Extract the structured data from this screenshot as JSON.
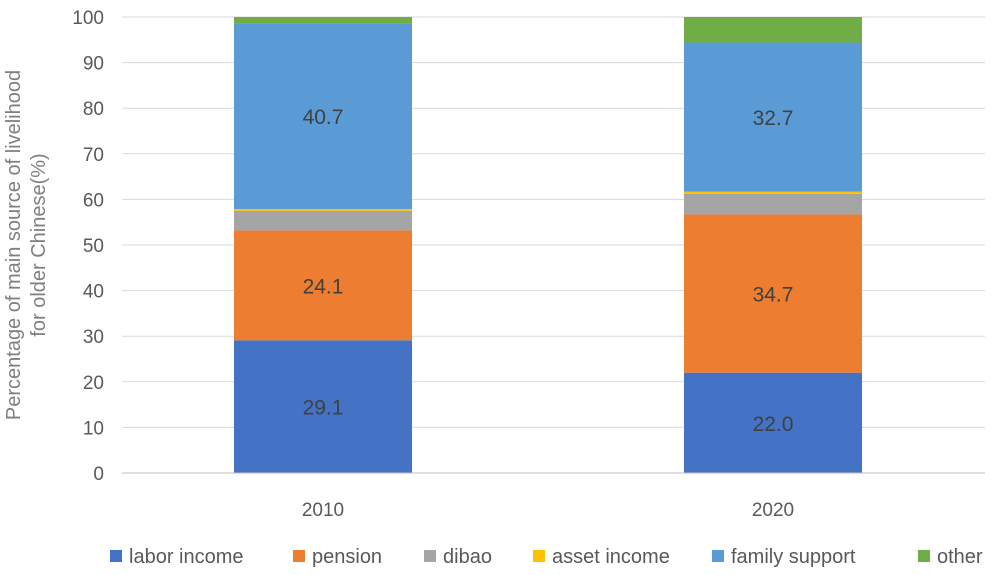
{
  "chart_data": {
    "type": "bar",
    "stacked": true,
    "categories": [
      "2010",
      "2020"
    ],
    "series": [
      {
        "name": "labor income",
        "color": "#4472c4",
        "values": [
          29.1,
          22.0
        ]
      },
      {
        "name": "pension",
        "color": "#ed7d31",
        "values": [
          24.1,
          34.7
        ]
      },
      {
        "name": "dibao",
        "color": "#a5a5a5",
        "values": [
          4.3,
          4.5
        ]
      },
      {
        "name": "asset income",
        "color": "#ffc000",
        "values": [
          0.4,
          0.5
        ]
      },
      {
        "name": "family support",
        "color": "#5b9bd5",
        "values": [
          40.7,
          32.7
        ]
      },
      {
        "name": "other",
        "color": "#70ad47",
        "values": [
          1.4,
          5.6
        ]
      }
    ],
    "data_labels": [
      {
        "series": "labor income",
        "text": [
          "29.1",
          "22.0"
        ]
      },
      {
        "series": "pension",
        "text": [
          "24.1",
          "34.7"
        ]
      },
      {
        "series": "family support",
        "text": [
          "40.7",
          "32.7"
        ]
      }
    ],
    "yticks": [
      "0",
      "10",
      "20",
      "30",
      "40",
      "50",
      "60",
      "70",
      "80",
      "90",
      "100"
    ],
    "ylim": [
      0,
      100
    ],
    "ylabel_lines": [
      "Percentage of main source of livelihood",
      "for older Chinese(%)"
    ],
    "xlabel": "",
    "title": "",
    "grid": true,
    "legend_position": "bottom"
  }
}
